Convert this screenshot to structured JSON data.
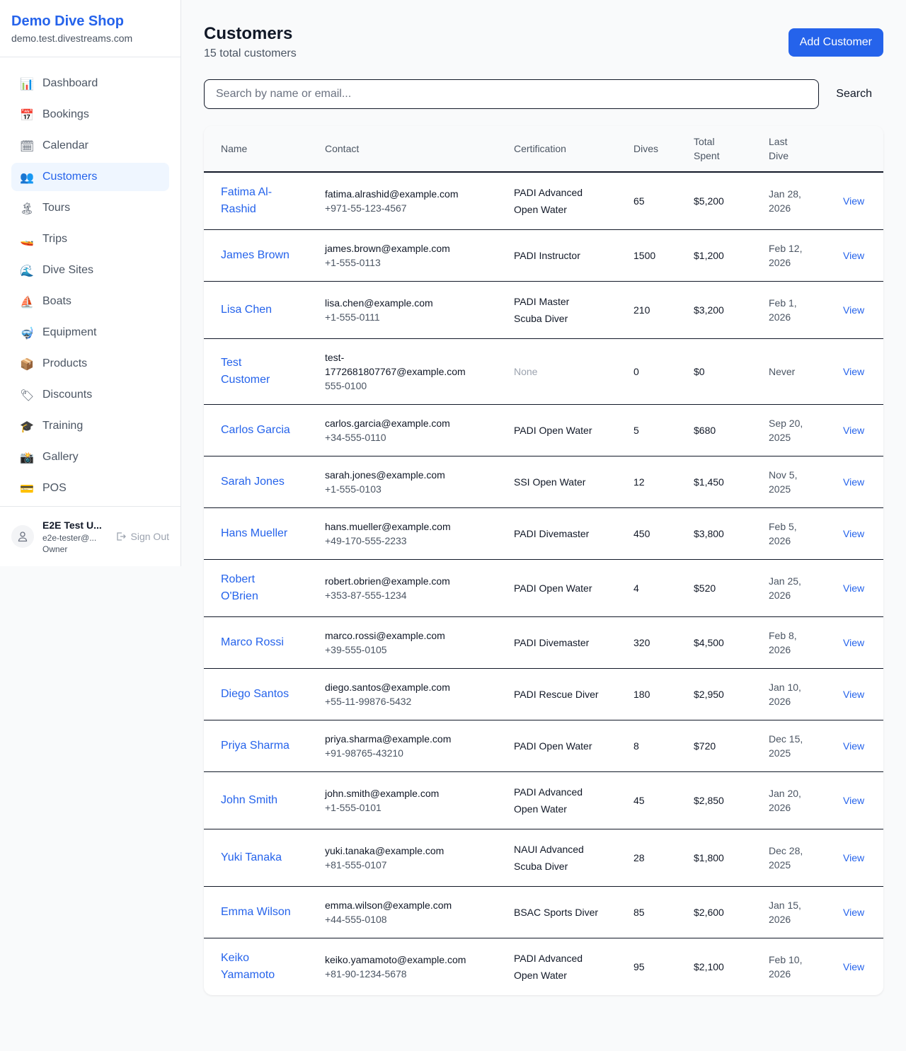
{
  "sidebar": {
    "brand": "Demo Dive Shop",
    "domain": "demo.test.divestreams.com",
    "items": [
      {
        "label": "Dashboard",
        "icon": "📊",
        "icon_name": "bar-chart-icon"
      },
      {
        "label": "Bookings",
        "icon": "📅",
        "icon_name": "calendar-date-icon"
      },
      {
        "label": "Calendar",
        "icon": "🗓",
        "icon_name": "spiral-calendar-icon"
      },
      {
        "label": "Customers",
        "icon": "👥",
        "icon_name": "users-icon",
        "active": true
      },
      {
        "label": "Tours",
        "icon": "🏝",
        "icon_name": "island-icon"
      },
      {
        "label": "Trips",
        "icon": "🚤",
        "icon_name": "speedboat-icon"
      },
      {
        "label": "Dive Sites",
        "icon": "🌊",
        "icon_name": "wave-icon"
      },
      {
        "label": "Boats",
        "icon": "⛵",
        "icon_name": "sailboat-icon"
      },
      {
        "label": "Equipment",
        "icon": "🤿",
        "icon_name": "diving-mask-icon"
      },
      {
        "label": "Products",
        "icon": "📦",
        "icon_name": "package-icon"
      },
      {
        "label": "Discounts",
        "icon": "🏷",
        "icon_name": "tag-icon"
      },
      {
        "label": "Training",
        "icon": "🎓",
        "icon_name": "graduation-cap-icon"
      },
      {
        "label": "Gallery",
        "icon": "📸",
        "icon_name": "camera-flash-icon"
      },
      {
        "label": "POS",
        "icon": "💳",
        "icon_name": "credit-card-icon"
      }
    ],
    "user": {
      "name": "E2E Test U...",
      "email": "e2e-tester@...",
      "role": "Owner",
      "sign_out": "Sign Out"
    }
  },
  "page": {
    "title": "Customers",
    "subtitle": "15 total customers",
    "add_button": "Add Customer",
    "search_placeholder": "Search by name or email...",
    "search_value": "",
    "search_button": "Search"
  },
  "table": {
    "headers": [
      "Name",
      "Contact",
      "Certification",
      "Dives",
      "Total Spent",
      "Last Dive",
      ""
    ],
    "view_label": "View",
    "rows": [
      {
        "name": "Fatima Al-Rashid",
        "email": "fatima.alrashid@example.com",
        "phone": "+971-55-123-4567",
        "cert": "PADI Advanced Open Water",
        "dives": "65",
        "spent": "$5,200",
        "last": "Jan 28, 2026"
      },
      {
        "name": "James Brown",
        "email": "james.brown@example.com",
        "phone": "+1-555-0113",
        "cert": "PADI Instructor",
        "dives": "1500",
        "spent": "$1,200",
        "last": "Feb 12, 2026"
      },
      {
        "name": "Lisa Chen",
        "email": "lisa.chen@example.com",
        "phone": "+1-555-0111",
        "cert": "PADI Master Scuba Diver",
        "dives": "210",
        "spent": "$3,200",
        "last": "Feb 1, 2026"
      },
      {
        "name": "Test Customer",
        "email": "test-1772681807767@example.com",
        "phone": "555-0100",
        "cert": "None",
        "dives": "0",
        "spent": "$0",
        "last": "Never"
      },
      {
        "name": "Carlos Garcia",
        "email": "carlos.garcia@example.com",
        "phone": "+34-555-0110",
        "cert": "PADI Open Water",
        "dives": "5",
        "spent": "$680",
        "last": "Sep 20, 2025"
      },
      {
        "name": "Sarah Jones",
        "email": "sarah.jones@example.com",
        "phone": "+1-555-0103",
        "cert": "SSI Open Water",
        "dives": "12",
        "spent": "$1,450",
        "last": "Nov 5, 2025"
      },
      {
        "name": "Hans Mueller",
        "email": "hans.mueller@example.com",
        "phone": "+49-170-555-2233",
        "cert": "PADI Divemaster",
        "dives": "450",
        "spent": "$3,800",
        "last": "Feb 5, 2026"
      },
      {
        "name": "Robert O'Brien",
        "email": "robert.obrien@example.com",
        "phone": "+353-87-555-1234",
        "cert": "PADI Open Water",
        "dives": "4",
        "spent": "$520",
        "last": "Jan 25, 2026"
      },
      {
        "name": "Marco Rossi",
        "email": "marco.rossi@example.com",
        "phone": "+39-555-0105",
        "cert": "PADI Divemaster",
        "dives": "320",
        "spent": "$4,500",
        "last": "Feb 8, 2026"
      },
      {
        "name": "Diego Santos",
        "email": "diego.santos@example.com",
        "phone": "+55-11-99876-5432",
        "cert": "PADI Rescue Diver",
        "dives": "180",
        "spent": "$2,950",
        "last": "Jan 10, 2026"
      },
      {
        "name": "Priya Sharma",
        "email": "priya.sharma@example.com",
        "phone": "+91-98765-43210",
        "cert": "PADI Open Water",
        "dives": "8",
        "spent": "$720",
        "last": "Dec 15, 2025"
      },
      {
        "name": "John Smith",
        "email": "john.smith@example.com",
        "phone": "+1-555-0101",
        "cert": "PADI Advanced Open Water",
        "dives": "45",
        "spent": "$2,850",
        "last": "Jan 20, 2026"
      },
      {
        "name": "Yuki Tanaka",
        "email": "yuki.tanaka@example.com",
        "phone": "+81-555-0107",
        "cert": "NAUI Advanced Scuba Diver",
        "dives": "28",
        "spent": "$1,800",
        "last": "Dec 28, 2025"
      },
      {
        "name": "Emma Wilson",
        "email": "emma.wilson@example.com",
        "phone": "+44-555-0108",
        "cert": "BSAC Sports Diver",
        "dives": "85",
        "spent": "$2,600",
        "last": "Jan 15, 2026"
      },
      {
        "name": "Keiko Yamamoto",
        "email": "keiko.yamamoto@example.com",
        "phone": "+81-90-1234-5678",
        "cert": "PADI Advanced Open Water",
        "dives": "95",
        "spent": "$2,100",
        "last": "Feb 10, 2026"
      }
    ]
  }
}
